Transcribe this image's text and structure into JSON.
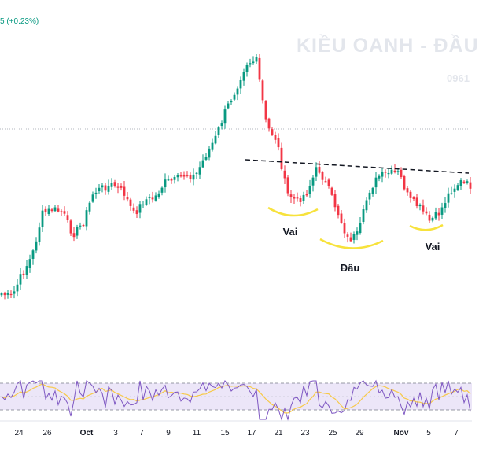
{
  "header": {
    "change_text": "5 (+0.23%)",
    "change_color": "#089981"
  },
  "watermark": {
    "name": "KIỀU OANH - ĐẦU",
    "phone": "0961"
  },
  "colors": {
    "up": "#089981",
    "down": "#f23645",
    "neckline": "#131722",
    "shoulder_arc": "#f7e23c",
    "rsi_band": "#ece6f8",
    "rsi_line": "#7e57c2",
    "rsi_ma": "#f7c948",
    "price_line": "#b2b5be"
  },
  "pattern_labels": {
    "left_shoulder": "Vai",
    "head": "Đầu",
    "right_shoulder": "Vai"
  },
  "x_axis": {
    "labels": [
      "24",
      "26",
      "Oct",
      "3",
      "7",
      "9",
      "11",
      "15",
      "17",
      "21",
      "23",
      "25",
      "29",
      "Nov",
      "5",
      "7"
    ]
  },
  "chart_data": {
    "type": "candlestick",
    "title": "",
    "pattern": "head-and-shoulders",
    "anchor_closes": [
      373,
      378,
      348,
      325,
      272,
      266,
      270,
      298,
      283,
      245,
      238,
      235,
      245,
      273,
      254,
      252,
      232,
      229,
      222,
      224,
      198,
      175,
      140,
      113,
      80,
      77,
      160,
      178,
      246,
      256,
      244,
      212,
      238,
      270,
      305,
      298,
      244,
      224,
      220,
      220,
      254,
      263,
      281,
      270,
      243,
      231,
      236
    ],
    "x_labels": [
      "24",
      "26",
      "Oct",
      "3",
      "7",
      "9",
      "11",
      "15",
      "17",
      "21",
      "23",
      "25",
      "29",
      "Nov",
      "5",
      "7"
    ],
    "neckline": "dashed, sloping from left shoulder peak to right shoulder",
    "indicator": "RSI with moving average"
  }
}
